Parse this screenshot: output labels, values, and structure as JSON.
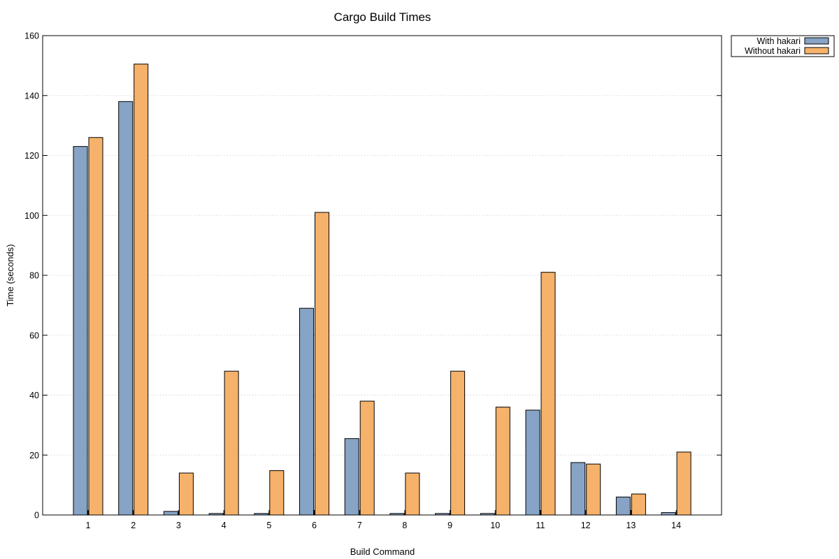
{
  "chart_data": {
    "type": "bar",
    "title": "Cargo Build Times",
    "xlabel": "Build Command",
    "ylabel": "Time (seconds)",
    "ylim": [
      0,
      160
    ],
    "yticks": [
      0,
      20,
      40,
      60,
      80,
      100,
      120,
      140,
      160
    ],
    "grid": true,
    "legend_position": "outside-top-right",
    "categories": [
      "1",
      "2",
      "3",
      "4",
      "5",
      "6",
      "7",
      "8",
      "9",
      "10",
      "11",
      "12",
      "13",
      "14"
    ],
    "series": [
      {
        "name": "With hakari",
        "color": "#87a3c5",
        "values": [
          123,
          138,
          1.2,
          0.5,
          0.5,
          69,
          25.5,
          0.5,
          0.5,
          0.5,
          35,
          17.5,
          6,
          0.8
        ]
      },
      {
        "name": "Without hakari",
        "color": "#f6b26b",
        "values": [
          126,
          150.5,
          14,
          48,
          14.8,
          101,
          38,
          14,
          48,
          36,
          81,
          17,
          7,
          21
        ]
      }
    ]
  }
}
